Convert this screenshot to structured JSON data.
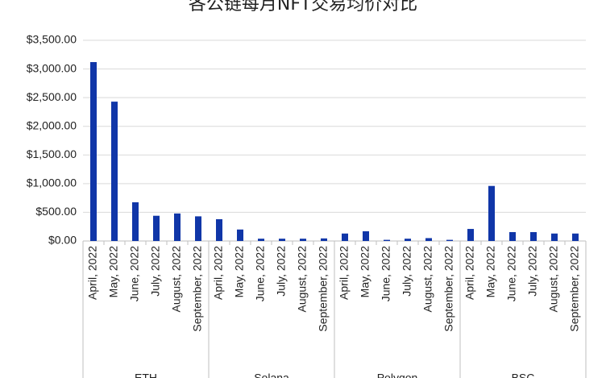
{
  "chart_data": {
    "type": "bar",
    "title": "各公链每月NFT交易均价对比",
    "groups": [
      "ETH",
      "Solana",
      "Polygon",
      "BSC"
    ],
    "categories": [
      "April, 2022",
      "May, 2022",
      "June, 2022",
      "July, 2022",
      "August, 2022",
      "September, 2022",
      "April, 2022",
      "May, 2022",
      "June, 2022",
      "July, 2022",
      "August, 2022",
      "September, 2022",
      "April, 2022",
      "May, 2022",
      "June, 2022",
      "July, 2022",
      "August, 2022",
      "September, 2022",
      "April, 2022",
      "May, 2022",
      "June, 2022",
      "July, 2022",
      "August, 2022",
      "September, 2022"
    ],
    "values": [
      3120,
      2430,
      675,
      440,
      480,
      430,
      380,
      200,
      40,
      40,
      40,
      45,
      130,
      170,
      20,
      40,
      50,
      20,
      210,
      960,
      155,
      155,
      130,
      130
    ],
    "color": "#1036a8",
    "ylim": [
      0,
      3500
    ],
    "yticks": [
      {
        "value": 0,
        "label": "$0.00"
      },
      {
        "value": 500,
        "label": "$500.00"
      },
      {
        "value": 1000,
        "label": "$1,000.00"
      },
      {
        "value": 1500,
        "label": "$1,500.00"
      },
      {
        "value": 2000,
        "label": "$2,000.00"
      },
      {
        "value": 2500,
        "label": "$2,500.00"
      },
      {
        "value": 3000,
        "label": "$3,000.00"
      },
      {
        "value": 3500,
        "label": "$3,500.00"
      }
    ],
    "grid": true
  }
}
